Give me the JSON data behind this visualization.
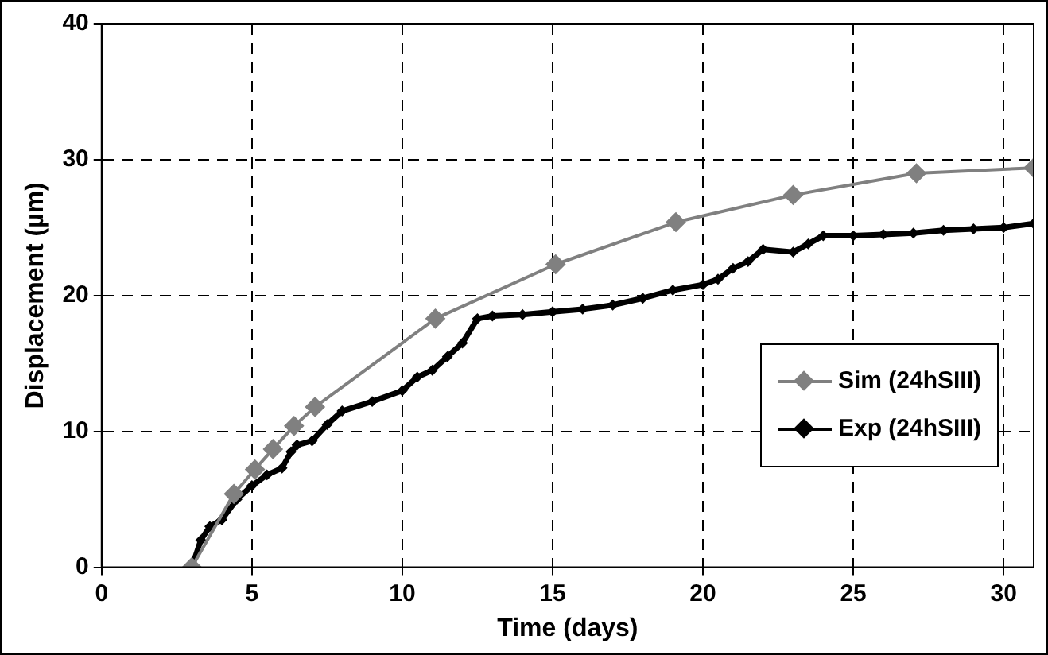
{
  "chart_data": {
    "type": "line",
    "xlabel": "Time (days)",
    "ylabel": "Displacement (µm)",
    "xlim": [
      0,
      31
    ],
    "xticks": [
      0,
      5,
      10,
      15,
      20,
      25,
      30
    ],
    "ylim": [
      0,
      40
    ],
    "yticks": [
      0,
      10,
      20,
      30,
      40
    ],
    "grid": true,
    "legend": "right",
    "marker": "diamond",
    "line_style": "solid",
    "series": [
      {
        "name": "Sim (24hSIII)",
        "color": "#808080",
        "x": [
          3.0,
          4.4,
          5.1,
          5.7,
          6.4,
          7.1,
          11.1,
          15.1,
          19.1,
          23.0,
          27.1,
          31.0
        ],
        "values": [
          0,
          5.4,
          7.2,
          8.7,
          10.4,
          11.8,
          18.3,
          22.3,
          25.4,
          27.4,
          29.0,
          29.4
        ]
      },
      {
        "name": "Exp (24hSIII)",
        "color": "#000000",
        "x": [
          3.0,
          3.3,
          3.6,
          4.0,
          4.5,
          5.0,
          5.5,
          6.0,
          6.3,
          6.5,
          7.0,
          7.5,
          8,
          9,
          10,
          10.5,
          11,
          11.5,
          12,
          12.5,
          13,
          14,
          15,
          16,
          17,
          18,
          19,
          20,
          20.5,
          21,
          21.5,
          22,
          23,
          23.5,
          24,
          25,
          26,
          27,
          28,
          29,
          30,
          31
        ],
        "values": [
          0,
          2,
          3,
          3.5,
          5,
          6,
          6.8,
          7.3,
          8.5,
          9,
          9.3,
          10.5,
          11.5,
          12.2,
          13,
          14,
          14.5,
          15.5,
          16.5,
          18.3,
          18.5,
          18.6,
          18.8,
          19,
          19.3,
          19.8,
          20.4,
          20.8,
          21.2,
          22,
          22.5,
          23.4,
          23.2,
          23.8,
          24.4,
          24.4,
          24.5,
          24.6,
          24.8,
          24.9,
          25,
          25.3
        ]
      }
    ]
  }
}
